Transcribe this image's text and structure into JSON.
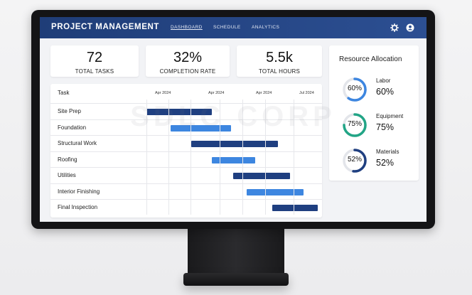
{
  "navbar": {
    "brand": "PROJECT MANAGEMENT",
    "links": [
      {
        "label": "DASHBOARD",
        "active": true
      },
      {
        "label": "SCHEDULE",
        "active": false
      },
      {
        "label": "ANALYTICS",
        "active": false
      }
    ],
    "icons": [
      "gear-icon",
      "user-icon"
    ]
  },
  "stats": [
    {
      "value": "72",
      "label": "TOTAL TASKS"
    },
    {
      "value": "32%",
      "label": "COMPLETION RATE"
    },
    {
      "value": "5.5k",
      "label": "TOTAL HOURS"
    }
  ],
  "gantt": {
    "task_column_title": "Task",
    "timeline_labels": [
      "Apr 2024",
      "Apr 2024",
      "Apr 2024",
      "Jul 2024"
    ],
    "tasks": [
      {
        "name": "Site Prep",
        "start": 0.0,
        "end": 0.38,
        "color": "#1f3f80"
      },
      {
        "name": "Foundation",
        "start": 0.14,
        "end": 0.49,
        "color": "#3d86e0"
      },
      {
        "name": "Structural Work",
        "start": 0.26,
        "end": 0.76,
        "color": "#1f3f80"
      },
      {
        "name": "Roofing",
        "start": 0.38,
        "end": 0.63,
        "color": "#3d86e0"
      },
      {
        "name": "Utilities",
        "start": 0.5,
        "end": 0.83,
        "color": "#1f3f80"
      },
      {
        "name": "Interior Finishing",
        "start": 0.58,
        "end": 0.91,
        "color": "#3d86e0"
      },
      {
        "name": "Final Inspection",
        "start": 0.73,
        "end": 0.99,
        "color": "#1f3f80"
      }
    ]
  },
  "resources": {
    "title": "Resource Allocation",
    "items": [
      {
        "name": "Labor",
        "percent_text": "60%",
        "ring_text": "60%",
        "fraction": 0.6,
        "color": "#3d86e0"
      },
      {
        "name": "Equipment",
        "percent_text": "75%",
        "ring_text": "75%",
        "fraction": 0.75,
        "color": "#22a586"
      },
      {
        "name": "Materials",
        "percent_text": "52%",
        "ring_text": "52%",
        "fraction": 0.52,
        "color": "#1f3f80"
      }
    ]
  },
  "watermark": "SDLC CORP",
  "colors": {
    "navbar": "#2c4f92",
    "bar_dark": "#1f3f80",
    "bar_light": "#3d86e0",
    "ring_track": "#e3e5ea"
  }
}
